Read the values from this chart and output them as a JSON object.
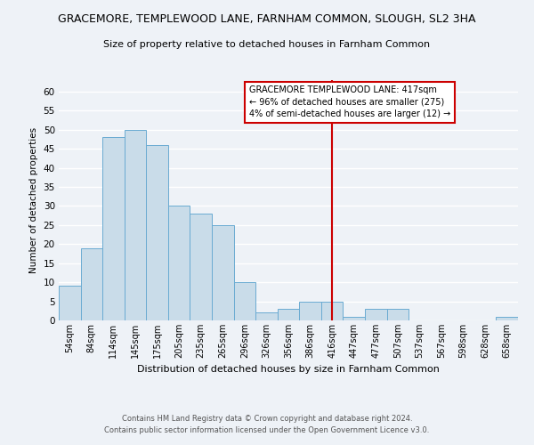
{
  "title": "GRACEMORE, TEMPLEWOOD LANE, FARNHAM COMMON, SLOUGH, SL2 3HA",
  "subtitle": "Size of property relative to detached houses in Farnham Common",
  "xlabel": "Distribution of detached houses by size in Farnham Common",
  "ylabel": "Number of detached properties",
  "footer_line1": "Contains HM Land Registry data © Crown copyright and database right 2024.",
  "footer_line2": "Contains public sector information licensed under the Open Government Licence v3.0.",
  "categories": [
    "54sqm",
    "84sqm",
    "114sqm",
    "145sqm",
    "175sqm",
    "205sqm",
    "235sqm",
    "265sqm",
    "296sqm",
    "326sqm",
    "356sqm",
    "386sqm",
    "416sqm",
    "447sqm",
    "477sqm",
    "507sqm",
    "537sqm",
    "567sqm",
    "598sqm",
    "628sqm",
    "658sqm"
  ],
  "values": [
    9,
    19,
    48,
    50,
    46,
    30,
    28,
    25,
    10,
    2,
    3,
    5,
    5,
    1,
    3,
    3,
    0,
    0,
    0,
    0,
    1
  ],
  "bar_color": "#c9dce9",
  "bar_edge_color": "#6aabd2",
  "background_color": "#eef2f7",
  "grid_color": "#ffffff",
  "ylim": [
    0,
    63
  ],
  "yticks": [
    0,
    5,
    10,
    15,
    20,
    25,
    30,
    35,
    40,
    45,
    50,
    55,
    60
  ],
  "marker_index": 12,
  "marker_label": "GRACEMORE TEMPLEWOOD LANE: 417sqm",
  "marker_line1": "← 96% of detached houses are smaller (275)",
  "marker_line2": "4% of semi-detached houses are larger (12) →",
  "marker_color": "#cc0000",
  "annotation_box_color": "#ffffff",
  "annotation_box_edge": "#cc0000"
}
